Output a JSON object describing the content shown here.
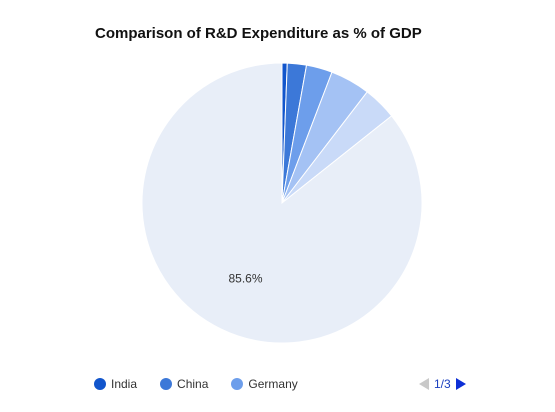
{
  "chart_data": {
    "type": "pie",
    "title": "Comparison of R&D Expenditure as % of GDP",
    "slices": [
      {
        "label": "India",
        "value": 0.6,
        "color": "#1155cc"
      },
      {
        "label": "China",
        "value": 2.2,
        "color": "#3c78d8"
      },
      {
        "label": "Germany",
        "value": 3.0,
        "color": "#6d9eeb"
      },
      {
        "label": "",
        "value": 4.6,
        "color": "#a4c2f4"
      },
      {
        "label": "",
        "value": 3.9,
        "color": "#c9daf8"
      },
      {
        "label": "",
        "value": 85.6,
        "color": "#e8eef8"
      }
    ],
    "data_labels": [
      "",
      "",
      "",
      "",
      "",
      "85.6%"
    ],
    "legend": {
      "position": "bottom",
      "items": [
        {
          "label": "India",
          "color": "#1155cc"
        },
        {
          "label": "China",
          "color": "#3c78d8"
        },
        {
          "label": "Germany",
          "color": "#6d9eeb"
        }
      ],
      "page_text": "1/3"
    }
  }
}
